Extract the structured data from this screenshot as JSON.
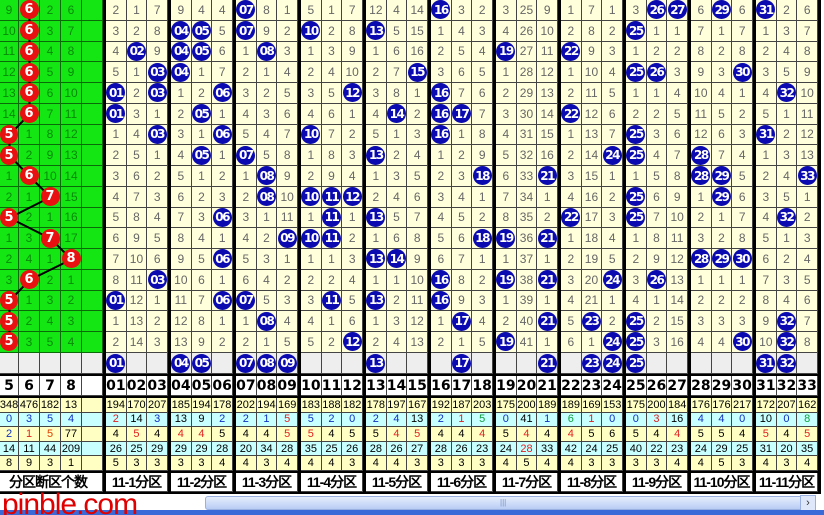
{
  "colors": {
    "hit_ball": "#0a0ab0",
    "count_ball": "#e81010",
    "panel_green": "#14e614",
    "cell_cream": "#ffffdc",
    "stat_yellow": "#ffffc4",
    "stat_cyan": "#c8ffff",
    "watermark": "#e00000"
  },
  "left_panel": {
    "headers": [
      "5",
      "6",
      "7",
      "8",
      ""
    ],
    "rows": [
      {
        "values": [
          "9",
          "6",
          "2",
          "6"
        ],
        "count": 6
      },
      {
        "values": [
          "10",
          "6",
          "3",
          "7"
        ],
        "count": 6
      },
      {
        "values": [
          "11",
          "6",
          "4",
          "8"
        ],
        "count": 6
      },
      {
        "values": [
          "12",
          "6",
          "5",
          "9"
        ],
        "count": 6
      },
      {
        "values": [
          "13",
          "6",
          "6",
          "10"
        ],
        "count": 6
      },
      {
        "values": [
          "14",
          "6",
          "7",
          "11"
        ],
        "count": 6
      },
      {
        "values": [
          "5",
          "1",
          "8",
          "12"
        ],
        "count": 5
      },
      {
        "values": [
          "5",
          "2",
          "9",
          "13"
        ],
        "count": 5
      },
      {
        "values": [
          "1",
          "6",
          "10",
          "14"
        ],
        "count": 6
      },
      {
        "values": [
          "2",
          "1",
          "7",
          "15"
        ],
        "count": 7
      },
      {
        "values": [
          "5",
          "2",
          "1",
          "16"
        ],
        "count": 5
      },
      {
        "values": [
          "1",
          "3",
          "7",
          "17"
        ],
        "count": 7
      },
      {
        "values": [
          "2",
          "4",
          "1",
          "8"
        ],
        "count": 8
      },
      {
        "values": [
          "3",
          "6",
          "2",
          "1"
        ],
        "count": 6
      },
      {
        "values": [
          "5",
          "1",
          "3",
          "2"
        ],
        "count": 5
      },
      {
        "values": [
          "5",
          "2",
          "4",
          "3"
        ],
        "count": 5
      },
      {
        "values": [
          "5",
          "3",
          "5",
          "4"
        ],
        "count": 5
      }
    ],
    "stats": [
      {
        "values": [
          "348",
          "476",
          "182",
          "13",
          ""
        ],
        "colors": "kkkkk"
      },
      {
        "values": [
          "0",
          "3",
          "5",
          "4",
          ""
        ],
        "colors": "bbbbk"
      },
      {
        "values": [
          "2",
          "1",
          "5",
          "77",
          ""
        ],
        "colors": "bros k"
      },
      {
        "values": [
          "14",
          "11",
          "44",
          "209",
          ""
        ],
        "colors": "kkkkk"
      },
      {
        "values": [
          "8",
          "9",
          "3",
          "1",
          ""
        ],
        "colors": "kkkkk"
      }
    ],
    "footer_label": "分区断区个数"
  },
  "grid": {
    "numbers": [
      "01",
      "02",
      "03",
      "04",
      "05",
      "06",
      "07",
      "08",
      "09",
      "10",
      "11",
      "12",
      "13",
      "14",
      "15",
      "16",
      "17",
      "18",
      "19",
      "20",
      "21",
      "22",
      "23",
      "24",
      "25",
      "26",
      "27",
      "28",
      "29",
      "30",
      "31",
      "32",
      "33"
    ],
    "rows": [
      {
        "cells": [
          "2",
          "1",
          "7",
          "9",
          "4",
          "4",
          "07",
          "8",
          "1",
          "5",
          "1",
          "7",
          "12",
          "4",
          "14",
          "16",
          "3",
          "2",
          "3",
          "25",
          "9",
          "1",
          "7",
          "1",
          "3",
          "26",
          "27",
          "6",
          "29",
          "6",
          "31",
          "2",
          "6"
        ],
        "hits": [
          7,
          16,
          26,
          27,
          29,
          31
        ]
      },
      {
        "cells": [
          "3",
          "2",
          "8",
          "04",
          "05",
          "5",
          "07",
          "9",
          "2",
          "10",
          "2",
          "8",
          "13",
          "5",
          "15",
          "1",
          "4",
          "3",
          "4",
          "26",
          "10",
          "2",
          "8",
          "2",
          "25",
          "1",
          "1",
          "7",
          "1",
          "7",
          "1",
          "3",
          "7"
        ],
        "hits": [
          4,
          5,
          7,
          10,
          13,
          25
        ]
      },
      {
        "cells": [
          "4",
          "02",
          "9",
          "04",
          "05",
          "6",
          "1",
          "08",
          "3",
          "1",
          "3",
          "9",
          "1",
          "6",
          "16",
          "2",
          "5",
          "4",
          "19",
          "27",
          "11",
          "22",
          "9",
          "3",
          "1",
          "2",
          "2",
          "8",
          "2",
          "8",
          "2",
          "4",
          "8"
        ],
        "hits": [
          2,
          4,
          5,
          8,
          19,
          22
        ]
      },
      {
        "cells": [
          "5",
          "1",
          "03",
          "04",
          "1",
          "7",
          "2",
          "1",
          "4",
          "2",
          "4",
          "10",
          "2",
          "7",
          "15",
          "3",
          "6",
          "5",
          "1",
          "28",
          "12",
          "1",
          "10",
          "4",
          "25",
          "26",
          "3",
          "9",
          "3",
          "30",
          "3",
          "5",
          "9"
        ],
        "hits": [
          3,
          4,
          15,
          25,
          26,
          30
        ]
      },
      {
        "cells": [
          "01",
          "2",
          "03",
          "1",
          "2",
          "06",
          "3",
          "2",
          "5",
          "3",
          "5",
          "12",
          "3",
          "8",
          "1",
          "16",
          "7",
          "6",
          "2",
          "29",
          "13",
          "2",
          "11",
          "5",
          "1",
          "1",
          "4",
          "10",
          "4",
          "1",
          "4",
          "32",
          "10"
        ],
        "hits": [
          1,
          3,
          6,
          12,
          16,
          32
        ]
      },
      {
        "cells": [
          "01",
          "3",
          "1",
          "2",
          "05",
          "1",
          "4",
          "3",
          "6",
          "4",
          "6",
          "1",
          "4",
          "14",
          "2",
          "16",
          "17",
          "7",
          "3",
          "30",
          "14",
          "22",
          "12",
          "6",
          "2",
          "2",
          "5",
          "11",
          "5",
          "2",
          "5",
          "1",
          "11"
        ],
        "hits": [
          1,
          5,
          14,
          16,
          17,
          22
        ]
      },
      {
        "cells": [
          "1",
          "4",
          "03",
          "3",
          "1",
          "06",
          "5",
          "4",
          "7",
          "10",
          "7",
          "2",
          "5",
          "1",
          "3",
          "16",
          "1",
          "8",
          "4",
          "31",
          "15",
          "1",
          "13",
          "7",
          "25",
          "3",
          "6",
          "12",
          "6",
          "3",
          "31",
          "2",
          "12"
        ],
        "hits": [
          3,
          6,
          10,
          16,
          25,
          31
        ]
      },
      {
        "cells": [
          "2",
          "5",
          "1",
          "4",
          "05",
          "1",
          "07",
          "5",
          "8",
          "1",
          "8",
          "3",
          "13",
          "2",
          "4",
          "1",
          "2",
          "9",
          "5",
          "32",
          "16",
          "2",
          "14",
          "24",
          "25",
          "4",
          "7",
          "28",
          "7",
          "4",
          "1",
          "3",
          "13"
        ],
        "hits": [
          5,
          7,
          13,
          24,
          25,
          28
        ]
      },
      {
        "cells": [
          "3",
          "6",
          "2",
          "5",
          "1",
          "2",
          "1",
          "08",
          "9",
          "2",
          "9",
          "4",
          "1",
          "3",
          "5",
          "2",
          "3",
          "18",
          "6",
          "33",
          "21",
          "3",
          "15",
          "1",
          "1",
          "5",
          "8",
          "28",
          "29",
          "5",
          "2",
          "4",
          "33"
        ],
        "hits": [
          8,
          18,
          21,
          28,
          29,
          33
        ]
      },
      {
        "cells": [
          "4",
          "7",
          "3",
          "6",
          "2",
          "3",
          "2",
          "08",
          "10",
          "10",
          "11",
          "12",
          "2",
          "4",
          "6",
          "3",
          "4",
          "1",
          "7",
          "34",
          "1",
          "4",
          "16",
          "2",
          "25",
          "6",
          "9",
          "1",
          "29",
          "6",
          "3",
          "5",
          "1"
        ],
        "hits": [
          8,
          10,
          11,
          12,
          25,
          29
        ]
      },
      {
        "cells": [
          "5",
          "8",
          "4",
          "7",
          "3",
          "06",
          "3",
          "1",
          "11",
          "1",
          "11",
          "1",
          "13",
          "5",
          "7",
          "4",
          "5",
          "2",
          "8",
          "35",
          "2",
          "22",
          "17",
          "3",
          "25",
          "7",
          "10",
          "2",
          "1",
          "7",
          "4",
          "32",
          "2"
        ],
        "hits": [
          6,
          11,
          13,
          22,
          25,
          32
        ]
      },
      {
        "cells": [
          "6",
          "9",
          "5",
          "8",
          "4",
          "1",
          "4",
          "2",
          "09",
          "10",
          "11",
          "2",
          "1",
          "6",
          "8",
          "5",
          "6",
          "18",
          "19",
          "36",
          "21",
          "1",
          "18",
          "4",
          "1",
          "8",
          "11",
          "3",
          "2",
          "8",
          "5",
          "1",
          "3"
        ],
        "hits": [
          9,
          10,
          11,
          18,
          19,
          21
        ]
      },
      {
        "cells": [
          "7",
          "10",
          "6",
          "9",
          "5",
          "06",
          "5",
          "3",
          "1",
          "1",
          "1",
          "3",
          "13",
          "14",
          "9",
          "6",
          "7",
          "1",
          "1",
          "37",
          "1",
          "2",
          "19",
          "5",
          "2",
          "9",
          "12",
          "28",
          "29",
          "30",
          "6",
          "2",
          "4"
        ],
        "hits": [
          6,
          13,
          14,
          28,
          29,
          30
        ]
      },
      {
        "cells": [
          "8",
          "11",
          "03",
          "10",
          "6",
          "1",
          "6",
          "4",
          "2",
          "2",
          "2",
          "4",
          "1",
          "1",
          "10",
          "16",
          "8",
          "2",
          "19",
          "38",
          "21",
          "3",
          "20",
          "24",
          "3",
          "26",
          "13",
          "1",
          "1",
          "1",
          "7",
          "3",
          "5"
        ],
        "hits": [
          3,
          16,
          19,
          21,
          24,
          26
        ]
      },
      {
        "cells": [
          "01",
          "12",
          "1",
          "11",
          "7",
          "06",
          "07",
          "5",
          "3",
          "3",
          "11",
          "5",
          "13",
          "2",
          "11",
          "16",
          "9",
          "3",
          "1",
          "39",
          "1",
          "4",
          "21",
          "1",
          "4",
          "1",
          "14",
          "2",
          "2",
          "2",
          "8",
          "4",
          "6"
        ],
        "hits": [
          1,
          6,
          7,
          11,
          13,
          16
        ]
      },
      {
        "cells": [
          "1",
          "13",
          "2",
          "12",
          "8",
          "1",
          "1",
          "08",
          "4",
          "4",
          "1",
          "6",
          "1",
          "3",
          "12",
          "1",
          "17",
          "4",
          "2",
          "40",
          "21",
          "5",
          "23",
          "2",
          "25",
          "2",
          "15",
          "3",
          "3",
          "3",
          "9",
          "32",
          "7"
        ],
        "hits": [
          8,
          17,
          21,
          23,
          25,
          32
        ]
      },
      {
        "cells": [
          "2",
          "14",
          "3",
          "13",
          "9",
          "2",
          "2",
          "1",
          "5",
          "5",
          "2",
          "12",
          "2",
          "4",
          "13",
          "2",
          "1",
          "5",
          "19",
          "41",
          "1",
          "6",
          "1",
          "24",
          "25",
          "3",
          "16",
          "4",
          "4",
          "30",
          "10",
          "32",
          "8"
        ],
        "hits": [
          12,
          19,
          24,
          25,
          30,
          32
        ]
      }
    ],
    "selected": [
      "01",
      "04",
      "05",
      "07",
      "08",
      "09",
      "13",
      "17",
      "21",
      "23",
      "24",
      "25",
      "31",
      "32"
    ],
    "stats": [
      {
        "values": [
          "194",
          "170",
          "207",
          "185",
          "194",
          "178",
          "202",
          "194",
          "169",
          "183",
          "188",
          "182",
          "178",
          "197",
          "167",
          "192",
          "187",
          "203",
          "175",
          "200",
          "189",
          "189",
          "169",
          "153",
          "175",
          "200",
          "184",
          "176",
          "176",
          "217",
          "172",
          "207",
          "162"
        ],
        "colors": "kkkkkkkkkkkkkkkkkkkkkkkkkkkkkkkkk"
      },
      {
        "values": [
          "2",
          "14",
          "3",
          "13",
          "9",
          "2",
          "2",
          "1",
          "5",
          "5",
          "2",
          "0",
          "2",
          "4",
          "13",
          "2",
          "1",
          "5",
          "0",
          "41",
          "1",
          "6",
          "1",
          "0",
          "0",
          "3",
          "16",
          "4",
          "4",
          "0",
          "10",
          "0",
          "8"
        ],
        "colors": "rkbkkbbbrbbbbbkbrgbkbgrbbrkbbbkbg"
      },
      {
        "values": [
          "4",
          "5",
          "4",
          "4",
          "4",
          "5",
          "4",
          "4",
          "5",
          "5",
          "4",
          "5",
          "5",
          "4",
          "5",
          "4",
          "4",
          "4",
          "5",
          "4",
          "4",
          "4",
          "5",
          "6",
          "5",
          "4",
          "4",
          "5",
          "5",
          "4",
          "5",
          "4",
          "5"
        ],
        "colors": "krkrrkkkrrkkkrrkkrkrkrkkkkrkkkrkr"
      },
      {
        "values": [
          "26",
          "25",
          "29",
          "29",
          "29",
          "28",
          "20",
          "34",
          "28",
          "35",
          "25",
          "26",
          "28",
          "26",
          "27",
          "28",
          "26",
          "23",
          "24",
          "28",
          "33",
          "42",
          "24",
          "25",
          "40",
          "22",
          "23",
          "24",
          "29",
          "25",
          "31",
          "20",
          "35"
        ],
        "colors": "kkkkkkkkkkkkkkkkkkkrkkkkkkkkkkkkk"
      },
      {
        "values": [
          "5",
          "3",
          "3",
          "3",
          "3",
          "4",
          "4",
          "3",
          "4",
          "4",
          "4",
          "3",
          "4",
          "4",
          "3",
          "3",
          "3",
          "3",
          "4",
          "5",
          "4",
          "4",
          "3",
          "3",
          "3",
          "3",
          "4",
          "4",
          "5",
          "3",
          "4",
          "3",
          "4"
        ],
        "colors": "kkkkkkkkkkkkkkkkkkkkkkkkkkkkkkkkk"
      }
    ],
    "zones": [
      "11-1分区",
      "11-2分区",
      "11-3分区",
      "11-4分区",
      "11-5分区",
      "11-6分区",
      "11-7分区",
      "11-8分区",
      "11-9分区",
      "11-10分区",
      "11-11分区"
    ]
  },
  "watermark": "pinble.com",
  "scrollbar": {
    "arrow_right": "›",
    "grip": "|||"
  }
}
